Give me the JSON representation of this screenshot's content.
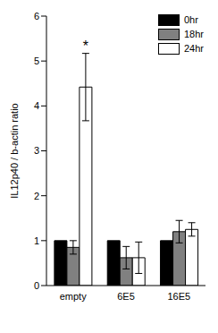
{
  "chart_data": {
    "type": "bar",
    "y_label": "IL12p40 / b-actin ratio",
    "categories": [
      "empty",
      "6E5",
      "16E5"
    ],
    "series": [
      {
        "name": "0hr",
        "color": "#000000",
        "values": [
          1,
          1,
          1
        ],
        "errors": [
          0,
          0,
          0
        ]
      },
      {
        "name": "18hr",
        "color": "#808080",
        "values": [
          0.85,
          0.62,
          1.2
        ],
        "errors": [
          0.15,
          0.25,
          0.25
        ]
      },
      {
        "name": "24hr",
        "color": "#ffffff",
        "values": [
          4.42,
          0.62,
          1.25
        ],
        "errors": [
          0.75,
          0.35,
          0.15
        ]
      }
    ],
    "ylim": [
      0,
      6
    ],
    "yticks": [
      0,
      1,
      2,
      3,
      4,
      5,
      6
    ],
    "grid": false,
    "legend": "top-right",
    "annotations": [
      {
        "text": "*",
        "category": "empty",
        "series": "24hr"
      }
    ]
  }
}
